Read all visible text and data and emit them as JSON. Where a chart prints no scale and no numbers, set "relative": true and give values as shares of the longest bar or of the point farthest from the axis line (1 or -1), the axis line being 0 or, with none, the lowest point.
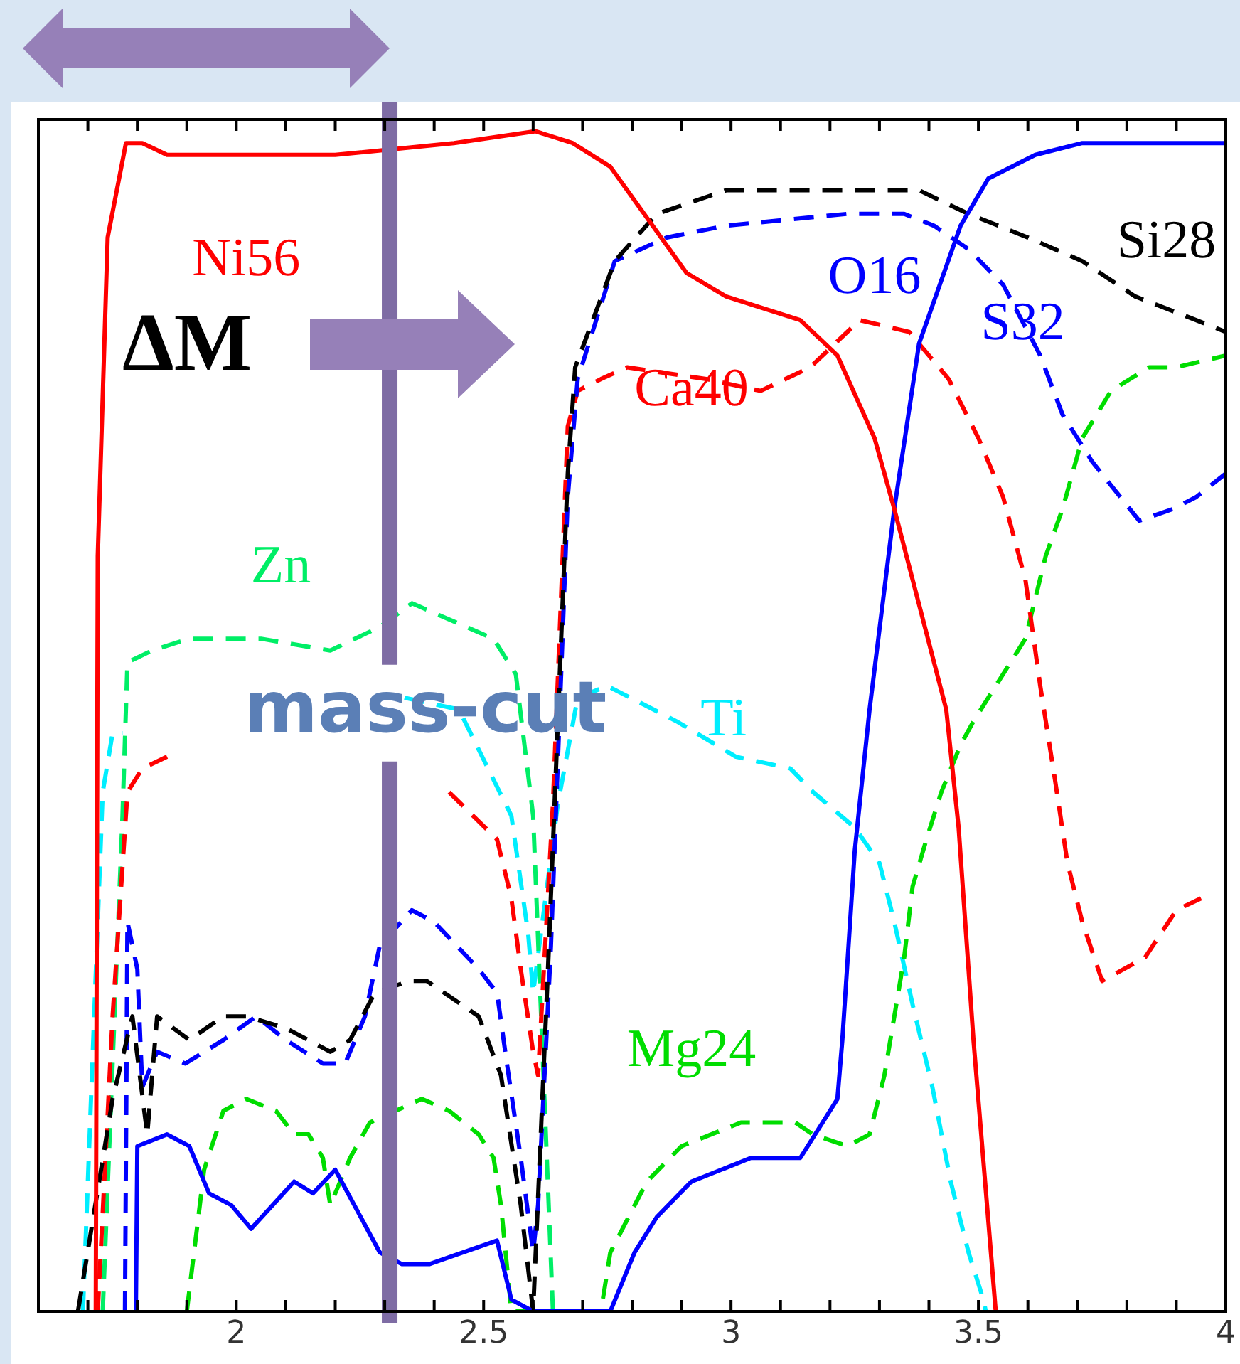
{
  "chart_data": {
    "type": "line",
    "relative": true,
    "xlim": [
      1.6,
      4
    ],
    "xticks": [
      {
        "value": 1.7,
        "label": null
      },
      {
        "value": 1.8,
        "label": null
      },
      {
        "value": 1.9,
        "label": null
      },
      2,
      {
        "value": 2.1,
        "label": null
      },
      {
        "value": 2.2,
        "label": null
      },
      {
        "value": 2.3,
        "label": null
      },
      {
        "value": 2.4,
        "label": null
      },
      2.5,
      {
        "value": 2.6,
        "label": null
      },
      {
        "value": 2.7,
        "label": null
      },
      {
        "value": 2.8,
        "label": null
      },
      {
        "value": 2.9,
        "label": null
      },
      3,
      {
        "value": 3.1,
        "label": null
      },
      {
        "value": 3.2,
        "label": null
      },
      {
        "value": 3.3,
        "label": null
      },
      {
        "value": 3.4,
        "label": null
      },
      3.5,
      {
        "value": 3.6,
        "label": null
      },
      {
        "value": 3.7,
        "label": null
      },
      {
        "value": 3.8,
        "label": null
      },
      {
        "value": 3.9,
        "label": null
      },
      4
    ],
    "grid": false,
    "legend": false,
    "marker": "none",
    "ref_lines": [
      {
        "axis": "x",
        "value": 2.31,
        "label": "mass-cut",
        "color": "#7e6ca4"
      }
    ],
    "annotations": [
      "ΔM"
    ],
    "series": [
      {
        "name": "Ni56",
        "color": "#ff0000",
        "line_style": "solid",
        "x": [
          1.716,
          1.72,
          1.74,
          1.777,
          1.81,
          1.86,
          2.0,
          2.2,
          2.44,
          2.605,
          2.68,
          2.756,
          2.91,
          2.99,
          3.14,
          3.215,
          3.29,
          3.33,
          3.435,
          3.46,
          3.49,
          3.535
        ],
        "values": [
          0,
          0.64,
          0.91,
          0.99,
          0.99,
          0.98,
          0.98,
          0.98,
          0.99,
          1,
          0.99,
          0.97,
          0.88,
          0.86,
          0.84,
          0.81,
          0.74,
          0.68,
          0.51,
          0.41,
          0.23,
          0
        ]
      },
      {
        "name": "O16",
        "color": "#0000ff",
        "line_style": "solid",
        "x": [
          1.797,
          1.8,
          1.86,
          1.905,
          1.945,
          1.99,
          2.03,
          2.117,
          2.155,
          2.2,
          2.29,
          2.335,
          2.39,
          2.527,
          2.556,
          2.6,
          2.756,
          2.805,
          2.85,
          2.92,
          3.04,
          3.14,
          3.215,
          3.225,
          3.25,
          3.28,
          3.33,
          3.38,
          3.464,
          3.52,
          3.615,
          3.71,
          3.76,
          4.0
        ],
        "values": [
          0,
          0.14,
          0.15,
          0.14,
          0.1,
          0.09,
          0.07,
          0.11,
          0.1,
          0.12,
          0.05,
          0.04,
          0.04,
          0.06,
          0.01,
          0,
          0,
          0.05,
          0.08,
          0.11,
          0.13,
          0.13,
          0.18,
          0.23,
          0.39,
          0.51,
          0.68,
          0.82,
          0.92,
          0.96,
          0.98,
          0.99,
          0.99,
          0.99
        ]
      },
      {
        "name": "Si28",
        "color": "#000000",
        "line_style": "dashed",
        "x": [
          1.68,
          1.75,
          1.79,
          1.82,
          1.84,
          1.905,
          1.974,
          2.02,
          2.1,
          2.19,
          2.23,
          2.28,
          2.35,
          2.385,
          2.49,
          2.535,
          2.575,
          2.6,
          2.63,
          2.67,
          2.685,
          2.765,
          2.85,
          2.99,
          3.235,
          3.38,
          3.48,
          3.6,
          3.71,
          3.817,
          3.94,
          4.0
        ],
        "values": [
          0,
          0.18,
          0.25,
          0.15,
          0.25,
          0.23,
          0.25,
          0.25,
          0.24,
          0.22,
          0.23,
          0.27,
          0.28,
          0.28,
          0.25,
          0.2,
          0.09,
          0,
          0.29,
          0.71,
          0.8,
          0.89,
          0.93,
          0.95,
          0.95,
          0.95,
          0.93,
          0.91,
          0.89,
          0.86,
          0.84,
          0.83
        ]
      },
      {
        "name": "S32",
        "color": "#0000ff",
        "line_style": "dashed",
        "x": [
          1.775,
          1.78,
          1.8,
          1.81,
          1.84,
          1.897,
          1.974,
          2.04,
          2.1,
          2.175,
          2.22,
          2.26,
          2.29,
          2.355,
          2.4,
          2.49,
          2.527,
          2.547,
          2.575,
          2.6,
          2.61,
          2.636,
          2.67,
          2.69,
          2.765,
          2.87,
          2.99,
          3.235,
          3.35,
          3.41,
          3.48,
          3.55,
          3.625,
          3.67,
          3.73,
          3.825,
          3.894,
          3.94,
          4.0
        ],
        "values": [
          0,
          0.33,
          0.29,
          0.19,
          0.22,
          0.21,
          0.23,
          0.25,
          0.23,
          0.21,
          0.21,
          0.25,
          0.31,
          0.34,
          0.33,
          0.29,
          0.27,
          0.21,
          0.13,
          0.05,
          0.09,
          0.31,
          0.69,
          0.79,
          0.89,
          0.91,
          0.92,
          0.93,
          0.93,
          0.92,
          0.9,
          0.87,
          0.81,
          0.76,
          0.72,
          0.67,
          0.68,
          0.69,
          0.71
        ]
      },
      {
        "name": "Ca40",
        "color": "#ff0000",
        "line_style": "dashed",
        "x": [
          1.72,
          1.75,
          1.78,
          1.81,
          1.86,
          2.1,
          2.43,
          2.527,
          2.556,
          2.575,
          2.6,
          2.61,
          2.64,
          2.67,
          2.69,
          2.737,
          2.79,
          2.95,
          3.06,
          3.16,
          3.26,
          3.36,
          3.44,
          3.5,
          3.55,
          3.595,
          3.625,
          3.655,
          3.68,
          3.71,
          3.75,
          3.837,
          3.9,
          3.95
        ],
        "values": [
          0,
          0.25,
          0.44,
          0.46,
          0.47,
          null,
          0.44,
          0.4,
          0.35,
          0.29,
          0.22,
          0.2,
          0.43,
          0.75,
          0.78,
          0.79,
          0.8,
          0.79,
          0.78,
          0.8,
          0.84,
          0.83,
          0.79,
          0.74,
          0.69,
          0.62,
          0.53,
          0.45,
          0.38,
          0.33,
          0.28,
          0.3,
          0.34,
          0.35
        ]
      },
      {
        "name": "Zn",
        "color": "#00ee66",
        "line_style": "dashed",
        "x": [
          1.73,
          1.77,
          1.78,
          1.83,
          1.905,
          2.05,
          2.19,
          2.29,
          2.355,
          2.41,
          2.52,
          2.565,
          2.6,
          2.64
        ],
        "values": [
          0,
          0.42,
          0.55,
          0.56,
          0.57,
          0.57,
          0.56,
          0.58,
          0.6,
          0.59,
          0.57,
          0.54,
          0.42,
          0
        ]
      },
      {
        "name": "Mg24",
        "color": "#00dd00",
        "line_style": "dashed",
        "x": [
          1.9,
          1.935,
          1.974,
          2.02,
          2.08,
          2.117,
          2.146,
          2.175,
          2.19,
          2.23,
          2.27,
          2.375,
          2.43,
          2.49,
          2.52,
          2.535,
          2.556,
          2.737,
          2.756,
          2.83,
          2.9,
          3.02,
          3.13,
          3.165,
          3.235,
          3.28,
          3.31,
          3.33,
          3.35,
          3.367,
          3.395,
          3.425,
          3.464,
          3.49,
          3.595,
          3.636,
          3.67,
          3.71,
          3.768,
          3.845,
          3.9,
          4.0
        ],
        "values": [
          0,
          0.12,
          0.17,
          0.18,
          0.17,
          0.15,
          0.15,
          0.13,
          0.09,
          0.13,
          0.16,
          0.18,
          0.17,
          0.15,
          0.13,
          0.09,
          0,
          0,
          0.05,
          0.11,
          0.14,
          0.16,
          0.16,
          0.15,
          0.14,
          0.15,
          0.2,
          0.25,
          0.3,
          0.36,
          0.4,
          0.44,
          0.48,
          0.5,
          0.57,
          0.64,
          0.68,
          0.74,
          0.78,
          0.8,
          0.8,
          0.81
        ]
      },
      {
        "name": "Ti",
        "color": "#00eeff",
        "line_style": "dashed",
        "x": [
          1.69,
          1.73,
          1.75,
          1.77,
          2.0,
          2.34,
          2.45,
          2.556,
          2.59,
          2.6,
          2.65,
          2.69,
          2.75,
          2.89,
          3.01,
          3.12,
          3.166,
          3.25,
          3.3,
          3.33,
          3.367,
          3.407,
          3.444,
          3.48,
          3.51,
          3.515
        ],
        "values": [
          0,
          0.44,
          0.49,
          0.49,
          null,
          0.52,
          0.51,
          0.42,
          0.32,
          0.27,
          0.43,
          0.52,
          0.53,
          0.5,
          0.47,
          0.46,
          0.44,
          0.41,
          0.38,
          0.33,
          0.26,
          0.19,
          0.11,
          0.05,
          0.01,
          0
        ]
      }
    ]
  }
}
